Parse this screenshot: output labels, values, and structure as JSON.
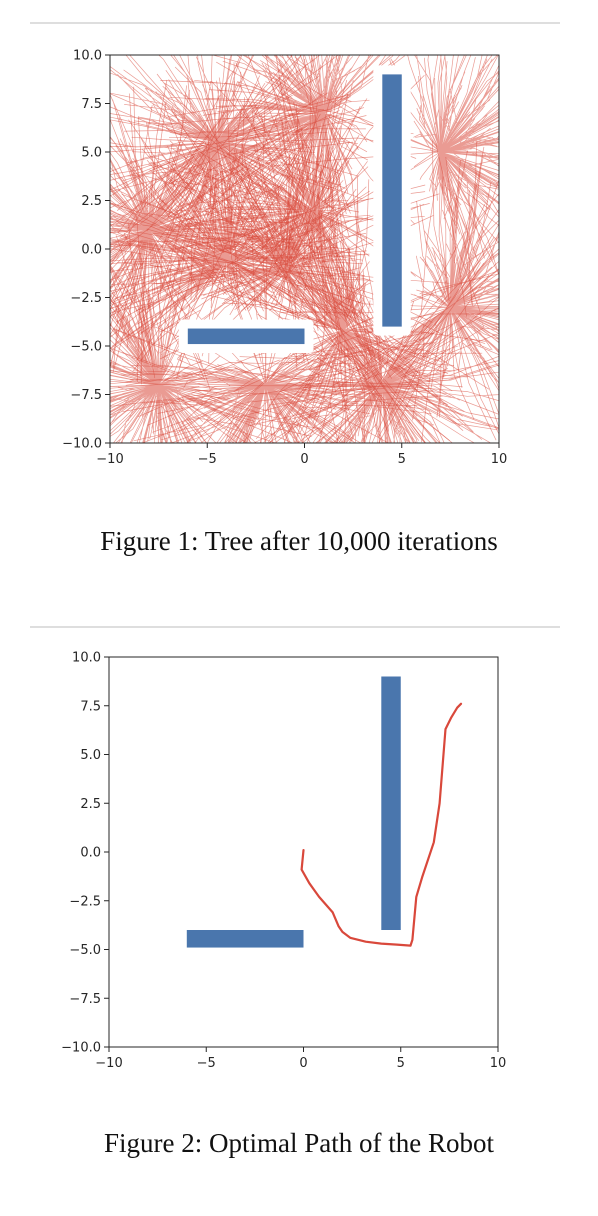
{
  "colors": {
    "tree": "#d9483b",
    "path": "#d9483b",
    "obstacle": "#4a76ad",
    "axis": "#262626",
    "rule": "#dedede"
  },
  "captions": {
    "fig1": "Figure 1: Tree after 10,000 iterations",
    "fig2": "Figure 2: Optimal Path of the Robot"
  },
  "chart_data": [
    {
      "type": "line",
      "title": "",
      "xlabel": "",
      "ylabel": "",
      "xlim": [
        -10,
        10
      ],
      "ylim": [
        -10,
        10
      ],
      "x_ticks": [
        -10,
        -5,
        0,
        5,
        10
      ],
      "x_tick_labels": [
        "−10",
        "−5",
        "0",
        "5",
        "10"
      ],
      "y_ticks": [
        10.0,
        7.5,
        5.0,
        2.5,
        0.0,
        -2.5,
        -5.0,
        -7.5,
        -10.0
      ],
      "y_tick_labels": [
        "10.0",
        "7.5",
        "5.0",
        "2.5",
        "0.0",
        "−2.5",
        "−5.0",
        "−7.5",
        "−10.0"
      ],
      "grid": false,
      "obstacles": [
        {
          "x0": -6,
          "x1": 0,
          "y0": -4.9,
          "y1": -4.1
        },
        {
          "x0": 4,
          "x1": 5,
          "y0": -4,
          "y1": 9
        }
      ],
      "tree_hubs": [
        {
          "x": -4.5,
          "y": 5.5
        },
        {
          "x": -8,
          "y": 1
        },
        {
          "x": 0.5,
          "y": 2
        },
        {
          "x": -1,
          "y": -1
        },
        {
          "x": -4,
          "y": -0.5
        },
        {
          "x": 2,
          "y": -4.2
        },
        {
          "x": -7.5,
          "y": -7
        },
        {
          "x": -2,
          "y": -7
        },
        {
          "x": 7,
          "y": 5
        },
        {
          "x": 7.5,
          "y": -3
        },
        {
          "x": 4,
          "y": -7
        },
        {
          "x": 1,
          "y": 7
        }
      ]
    },
    {
      "type": "line",
      "title": "",
      "xlabel": "",
      "ylabel": "",
      "xlim": [
        -10,
        10
      ],
      "ylim": [
        -10,
        10
      ],
      "x_ticks": [
        -10,
        -5,
        0,
        5,
        10
      ],
      "x_tick_labels": [
        "−10",
        "−5",
        "0",
        "5",
        "10"
      ],
      "y_ticks": [
        10.0,
        7.5,
        5.0,
        2.5,
        0.0,
        -2.5,
        -5.0,
        -7.5,
        -10.0
      ],
      "y_tick_labels": [
        "10.0",
        "7.5",
        "5.0",
        "2.5",
        "0.0",
        "−2.5",
        "−5.0",
        "−7.5",
        "−10.0"
      ],
      "grid": false,
      "obstacles": [
        {
          "x0": -6,
          "x1": 0,
          "y0": -4.9,
          "y1": -4.0
        },
        {
          "x0": 4,
          "x1": 5,
          "y0": -4,
          "y1": 9
        }
      ],
      "series": [
        {
          "x": [
            0,
            -0.1,
            0.3,
            0.8,
            1.5,
            1.8,
            2.0,
            2.4,
            3.2,
            4.0,
            4.8,
            5.5,
            5.6,
            5.8,
            6.1,
            6.7,
            7.0,
            7.3,
            7.6,
            7.9,
            8.1
          ],
          "y": [
            0.1,
            -0.9,
            -1.6,
            -2.3,
            -3.1,
            -3.8,
            -4.1,
            -4.4,
            -4.6,
            -4.7,
            -4.75,
            -4.8,
            -4.5,
            -2.3,
            -1.3,
            0.5,
            2.5,
            6.3,
            6.9,
            7.4,
            7.6
          ]
        }
      ]
    }
  ]
}
